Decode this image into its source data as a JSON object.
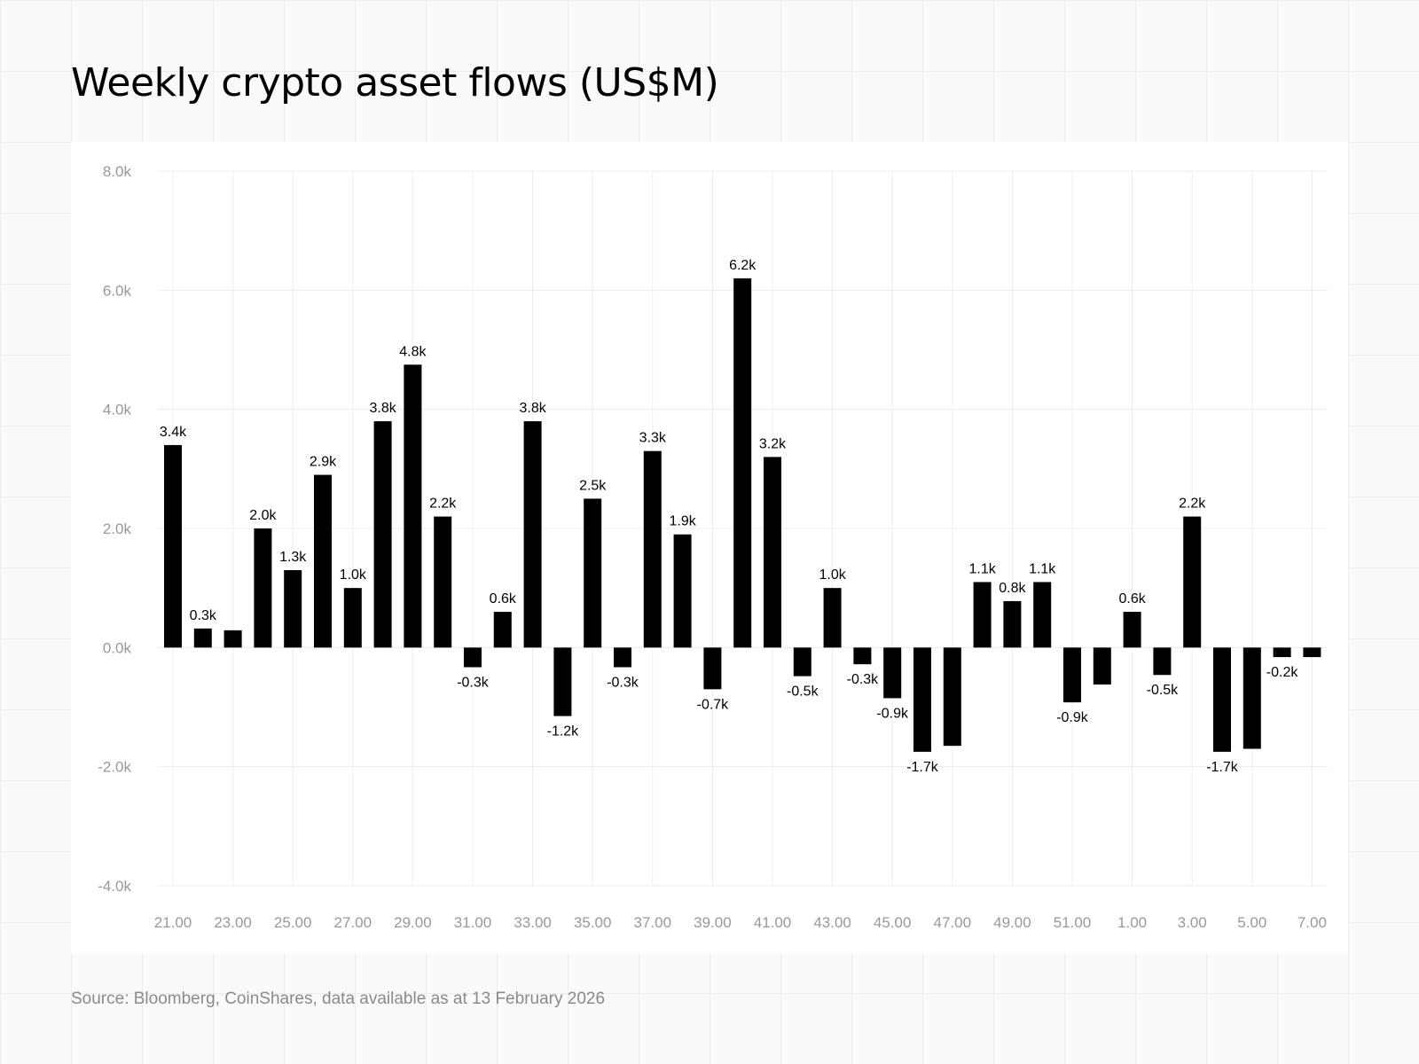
{
  "title": "Weekly crypto asset flows (US$M)",
  "source": "Source: Bloomberg, CoinShares, data available as at 13 February 2026",
  "colors": {
    "bar": "#000000",
    "grid": "#ececec",
    "tick_text": "#999999",
    "label_text": "#000000"
  },
  "chart_data": {
    "type": "bar",
    "title": "Weekly crypto asset flows (US$M)",
    "xlabel": "",
    "ylabel": "",
    "ylim": [
      -4000,
      8000
    ],
    "y_ticks": [
      -4000,
      -2000,
      0,
      2000,
      4000,
      6000,
      8000
    ],
    "y_tick_labels": [
      "-4.0k",
      "-2.0k",
      "0.0k",
      "2.0k",
      "4.0k",
      "6.0k",
      "8.0k"
    ],
    "x_tick_labels": [
      "21.00",
      "23.00",
      "25.00",
      "27.00",
      "29.00",
      "31.00",
      "33.00",
      "35.00",
      "37.00",
      "39.00",
      "41.00",
      "43.00",
      "45.00",
      "47.00",
      "49.00",
      "51.00",
      "1.00",
      "3.00",
      "5.00",
      "7.00"
    ],
    "categories": [
      "21",
      "22",
      "23",
      "24",
      "25",
      "26",
      "27",
      "28",
      "29",
      "30",
      "31",
      "32",
      "33",
      "34",
      "35",
      "36",
      "37",
      "38",
      "39",
      "40",
      "41",
      "42",
      "43",
      "44",
      "45",
      "46",
      "47",
      "48",
      "49",
      "50",
      "51",
      "52",
      "1",
      "2",
      "3",
      "4",
      "5",
      "6",
      "7"
    ],
    "values": [
      3400,
      320,
      290,
      2000,
      1300,
      2900,
      1000,
      3800,
      4750,
      2200,
      -330,
      600,
      3800,
      -1150,
      2500,
      -330,
      3300,
      1900,
      -700,
      6200,
      3200,
      -480,
      1000,
      -280,
      -850,
      -1750,
      -1650,
      1100,
      780,
      1100,
      -920,
      -620,
      600,
      -460,
      2200,
      -1750,
      -1700,
      -160,
      -160
    ],
    "data_labels": [
      "3.4k",
      "0.3k",
      "",
      "2.0k",
      "1.3k",
      "2.9k",
      "1.0k",
      "3.8k",
      "4.8k",
      "2.2k",
      "-0.3k",
      "0.6k",
      "3.8k",
      "-1.2k",
      "2.5k",
      "-0.3k",
      "3.3k",
      "1.9k",
      "-0.7k",
      "6.2k",
      "3.2k",
      "-0.5k",
      "1.0k",
      "-0.3k",
      "-0.9k",
      "-1.7k",
      "",
      "1.1k",
      "0.8k",
      "1.1k",
      "-0.9k",
      "",
      "0.6k",
      "-0.5k",
      "2.2k",
      "-1.7k",
      "",
      "-0.2k",
      ""
    ],
    "grid": true,
    "legend": "none"
  }
}
